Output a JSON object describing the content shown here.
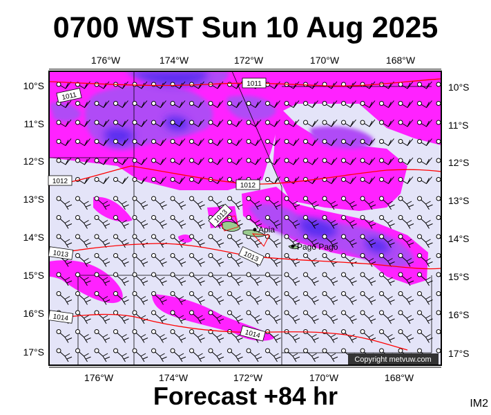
{
  "title": "0700 WST Sun 10 Aug 2025",
  "subtitle": "Forecast +84 hr",
  "image_tag": "IM2",
  "copyright": "Copyright metvuw.com",
  "lon_labels": [
    "176°W",
    "174°W",
    "172°W",
    "170°W",
    "168°W"
  ],
  "lat_labels": [
    "10°S",
    "11°S",
    "12°S",
    "13°S",
    "14°S",
    "15°S",
    "16°S",
    "17°S"
  ],
  "isobar_labels": [
    "1011",
    "1011",
    "1012",
    "1012",
    "1013",
    "1013",
    "1013",
    "1014",
    "1014"
  ],
  "places": [
    "Apia",
    "Pago Pago"
  ],
  "colors": {
    "background": "#e4e4f8",
    "rain_light": "#ff22ff",
    "rain_medium": "#b04cf6",
    "rain_heavy": "#5a2ef0",
    "isobar": "#ff0000"
  }
}
